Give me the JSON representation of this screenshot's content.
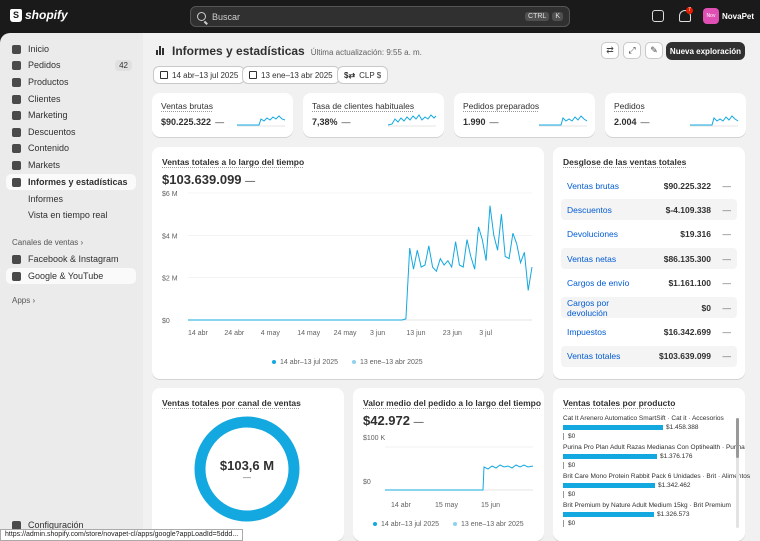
{
  "topbar": {
    "logo": "shopify",
    "search_placeholder": "Buscar",
    "kbd1": "CTRL",
    "kbd2": "K",
    "notification_count": "7",
    "avatar_initials": "Nov",
    "store_name": "NovaPet"
  },
  "sidebar": {
    "items": [
      {
        "label": "Inicio",
        "icon": "home-icon"
      },
      {
        "label": "Pedidos",
        "icon": "orders-icon",
        "count": "42"
      },
      {
        "label": "Productos",
        "icon": "tag-icon"
      },
      {
        "label": "Clientes",
        "icon": "person-icon"
      },
      {
        "label": "Marketing",
        "icon": "target-icon"
      },
      {
        "label": "Descuentos",
        "icon": "discount-icon"
      },
      {
        "label": "Contenido",
        "icon": "content-icon"
      },
      {
        "label": "Markets",
        "icon": "globe-icon"
      },
      {
        "label": "Informes y estadísticas",
        "icon": "chart-icon"
      }
    ],
    "sub_items": [
      "Informes",
      "Vista en tiempo real"
    ],
    "sales_channels_label": "Canales de ventas",
    "channels": [
      "Facebook & Instagram",
      "Google & YouTube"
    ],
    "apps_label": "Apps",
    "settings_label": "Configuración"
  },
  "header": {
    "title": "Informes y estadísticas",
    "last_update": "Última actualización: 9:55 a. m.",
    "primary_button": "Nueva exploración"
  },
  "filters": {
    "date_range": "14 abr–13 jul 2025",
    "compare_range": "13 ene–13 abr 2025",
    "currency": "CLP $"
  },
  "metrics": [
    {
      "title": "Ventas brutas",
      "value": "$90.225.322",
      "dash": "—"
    },
    {
      "title": "Tasa de clientes habituales",
      "value": "7,38%",
      "dash": "—"
    },
    {
      "title": "Pedidos preparados",
      "value": "1.990",
      "dash": "—"
    },
    {
      "title": "Pedidos",
      "value": "2.004",
      "dash": "—"
    }
  ],
  "sales_over_time": {
    "title": "Ventas totales a lo largo del tiempo",
    "value": "$103.639.099",
    "dash": "—",
    "y_ticks": [
      "$6 M",
      "$4 M",
      "$2 M",
      "$0"
    ],
    "x_ticks": [
      "14 abr",
      "24 abr",
      "4 may",
      "14 may",
      "24 may",
      "3 jun",
      "13 jun",
      "23 jun",
      "3 jul"
    ],
    "legend": [
      "14 abr–13 jul 2025",
      "13 ene–13 abr 2025"
    ]
  },
  "chart_data": {
    "type": "line",
    "ylim": [
      0,
      6
    ],
    "series": [
      {
        "name": "14 abr–13 jul 2025",
        "values": [
          0,
          0,
          0,
          0,
          0,
          0,
          0,
          0,
          0,
          0,
          0,
          0,
          0,
          0,
          0,
          0,
          0,
          0,
          0,
          0,
          0,
          0,
          0,
          0,
          0,
          0,
          0,
          0,
          0,
          0,
          0,
          0,
          0,
          0,
          0,
          0,
          0,
          0,
          0,
          0,
          0,
          0,
          0,
          0,
          0,
          0,
          0,
          0,
          0,
          0,
          0,
          0,
          0,
          0,
          0,
          0,
          0,
          0.05,
          3.4,
          2.4,
          3.3,
          2.5,
          2.6,
          3.5,
          2.5,
          2.3,
          2.9,
          2.6,
          2.8,
          2.5,
          3.7,
          2.6,
          2.5,
          3.8,
          3.0,
          2.4,
          4.4,
          3.8,
          2.8,
          5.4,
          4.0,
          3.3,
          5.0,
          3.0,
          2.9,
          4.1,
          3.6,
          2.7,
          3.2,
          1.4,
          2.5
        ]
      },
      {
        "name": "13 ene–13 abr 2025",
        "values": []
      }
    ]
  },
  "breakdown": {
    "title": "Desglose de las ventas totales",
    "rows": [
      {
        "label": "Ventas brutas",
        "value": "$90.225.322"
      },
      {
        "label": "Descuentos",
        "value": "$-4.109.338"
      },
      {
        "label": "Devoluciones",
        "value": "$19.316"
      },
      {
        "label": "Ventas netas",
        "value": "$86.135.300"
      },
      {
        "label": "Cargos de envío",
        "value": "$1.161.100"
      },
      {
        "label": "Cargos por devolución",
        "value": "$0"
      },
      {
        "label": "Impuestos",
        "value": "$16.342.699"
      },
      {
        "label": "Ventas totales",
        "value": "$103.639.099"
      }
    ],
    "dash": "—"
  },
  "by_channel": {
    "title": "Ventas totales por canal de ventas",
    "center_value": "$103,6 M",
    "dash": "—"
  },
  "aov": {
    "title": "Valor medio del pedido a lo largo del tiempo",
    "value": "$42.972",
    "dash": "—",
    "y_ticks": [
      "$100 K",
      "$0"
    ],
    "x_ticks": [
      "14 abr",
      "15 may",
      "15 jun"
    ],
    "legend": [
      "14 abr–13 jul 2025",
      "13 ene–13 abr 2025"
    ]
  },
  "by_product": {
    "title": "Ventas totales por producto",
    "rows": [
      {
        "name": "Cat It Arenero Automatico SmartSift · Cat it · Accesorios",
        "value": "$1.458.388",
        "fraction": 1.0
      },
      {
        "name": "Purina Pro Plan Adult Razas Medianas Con Optihealth · Purina",
        "value": "$1.376.176",
        "fraction": 0.94
      },
      {
        "name": "Brit Care Mono Protein Rabbit Pack 6 Unidades · Brit · Alimentos",
        "value": "$1.342.462",
        "fraction": 0.92
      },
      {
        "name": "Brit Premium by Nature Adult Medium 15kg · Brit Premium",
        "value": "$1.326.573",
        "fraction": 0.91
      }
    ],
    "zero_label": "$0"
  },
  "statusbar_url": "https://admin.shopify.com/store/novapet-cl/apps/google?appLoadId=5ddd..."
}
